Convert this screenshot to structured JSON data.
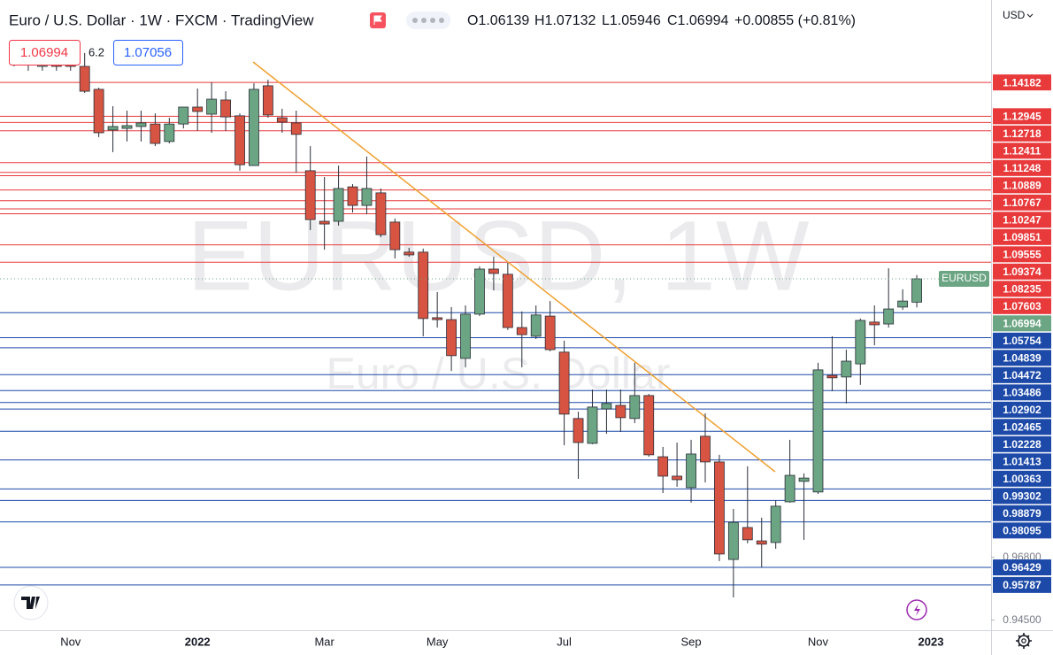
{
  "chart_data": {
    "type": "candlestick",
    "title": "Euro / U.S. Dollar · 1W · FXCM · TradingView",
    "symbol": "EURUSD",
    "watermark_symbol": "EURUSD, 1W",
    "watermark_name": "Euro / U.S. Dollar",
    "currency": "USD",
    "categories": [
      null,
      null,
      null,
      null,
      "Nov",
      null,
      null,
      null,
      null,
      null,
      null,
      null,
      null,
      "2022",
      null,
      null,
      null,
      null,
      null,
      null,
      null,
      null,
      "Mar",
      null,
      null,
      null,
      null,
      null,
      null,
      null,
      "May",
      null,
      null,
      null,
      null,
      null,
      null,
      null,
      null,
      "Jul",
      null,
      null,
      null,
      null,
      null,
      null,
      null,
      null,
      "Sep",
      null,
      null,
      null,
      null,
      null,
      null,
      null,
      null,
      "Nov",
      null,
      null,
      null,
      null,
      null,
      null,
      null,
      "2023"
    ],
    "open": [
      1.1493,
      1.1509,
      1.1477,
      1.1493,
      1.1493,
      1.1477,
      1.1393,
      1.1244,
      1.125,
      1.1257,
      1.1266,
      1.1202,
      1.1266,
      1.1328,
      1.1302,
      1.1354,
      1.1296,
      1.1114,
      1.1406,
      1.1289,
      1.127,
      1.1095,
      1.091,
      1.091,
      1.1036,
      1.0968,
      1.1014,
      1.0907,
      1.0797,
      1.0797,
      1.0557,
      1.055,
      1.0408,
      1.057,
      1.0735,
      1.0716,
      1.0521,
      1.0489,
      1.0563,
      1.0431,
      1.0188,
      1.0097,
      1.0223,
      1.0236,
      1.0188,
      1.0272,
      1.0048,
      0.9977,
      0.9935,
      1.0123,
      1.0029,
      0.9672,
      0.9789,
      0.974,
      0.9734,
      0.9883,
      0.9958,
      0.9919,
      1.0346,
      1.034,
      1.0388,
      1.0541,
      1.0534,
      1.0596,
      1.06139,
      null
    ],
    "high": [
      1.1526,
      1.1526,
      1.1509,
      1.1509,
      1.1526,
      1.1526,
      1.1399,
      1.1331,
      1.1315,
      1.1315,
      1.1305,
      1.1289,
      1.1328,
      1.1396,
      1.1419,
      1.1386,
      1.1305,
      1.1415,
      1.1428,
      1.1322,
      1.1315,
      1.1185,
      1.1072,
      1.1114,
      1.1046,
      1.1147,
      1.103,
      1.092,
      1.0813,
      1.081,
      1.0651,
      1.0596,
      1.0602,
      1.0745,
      1.078,
      1.0758,
      1.058,
      1.0602,
      1.0618,
      1.0473,
      1.0213,
      1.0294,
      1.0294,
      1.0294,
      1.0392,
      1.0278,
      1.0084,
      1.01,
      1.011,
      1.0207,
      1.0055,
      0.9857,
      1.0013,
      0.9825,
      0.9889,
      1.011,
      0.9987,
      1.0392,
      1.0489,
      1.044,
      1.0554,
      1.0602,
      1.0738,
      1.0661,
      1.07132,
      null
    ],
    "low": [
      1.1477,
      1.1461,
      1.1461,
      1.1461,
      1.1461,
      1.138,
      1.1218,
      1.1163,
      1.1202,
      1.1202,
      1.1185,
      1.1195,
      1.125,
      1.1241,
      1.1234,
      1.1241,
      1.1095,
      1.1114,
      1.1289,
      1.1234,
      1.1088,
      1.0878,
      1.0806,
      1.0894,
      1.0942,
      1.0936,
      1.0852,
      1.0774,
      1.078,
      1.0489,
      1.0521,
      1.0362,
      1.0375,
      1.0563,
      1.0657,
      1.0512,
      1.0375,
      1.0479,
      1.0434,
      1.009,
      0.9967,
      1.0094,
      1.0132,
      1.0139,
      1.0171,
      1.0048,
      0.9915,
      0.9938,
      0.988,
      0.9954,
      0.9666,
      0.9533,
      0.9731,
      0.9643,
      0.9711,
      0.988,
      0.9744,
      0.9912,
      1.0288,
      1.0243,
      1.0311,
      1.0456,
      1.0521,
      1.0586,
      1.05946,
      null
    ],
    "close": [
      1.1509,
      1.1493,
      1.1493,
      1.1477,
      1.1477,
      1.1386,
      1.1234,
      1.1257,
      1.126,
      1.127,
      1.1195,
      1.1266,
      1.1328,
      1.1312,
      1.1357,
      1.1292,
      1.1117,
      1.1393,
      1.1299,
      1.1273,
      1.1228,
      1.0916,
      1.09,
      1.103,
      1.0968,
      1.103,
      1.0861,
      1.0806,
      1.0787,
      1.0554,
      1.055,
      1.0418,
      1.057,
      1.0735,
      1.0719,
      1.0521,
      1.0495,
      1.0567,
      1.044,
      1.0204,
      1.01,
      1.023,
      1.0243,
      1.0191,
      1.0272,
      1.0055,
      0.9977,
      0.9964,
      1.0058,
      1.0029,
      0.9692,
      0.9808,
      0.9744,
      0.9728,
      0.9867,
      0.998,
      0.997,
      1.0366,
      1.0337,
      1.0398,
      1.0547,
      1.0531,
      1.0589,
      1.0618,
      1.06994,
      null
    ],
    "up_color": "#6ba583",
    "down_color": "#d75442",
    "ylim": [
      0.9413,
      1.172
    ],
    "yticks": [
      {
        "value": 0.968,
        "label": "0.96800"
      },
      {
        "value": 0.945,
        "label": "0.94500"
      }
    ],
    "grid": false,
    "resistance_color": "#e8393b",
    "support_color": "#1d4aa8",
    "resistance_levels": [
      1.14182,
      1.12945,
      1.12718,
      1.12411,
      1.11248,
      1.10889,
      1.10767,
      1.10247,
      1.09851,
      1.09555,
      1.09374,
      1.08235,
      1.07603
    ],
    "support_levels": [
      1.05754,
      1.04839,
      1.04472,
      1.03486,
      1.02902,
      1.02465,
      1.02228,
      1.01413,
      1.00363,
      0.99302,
      0.98879,
      0.98095,
      0.96429,
      0.95787
    ]
  },
  "toolbar": {
    "open": "O1.06139",
    "high": "H1.07132",
    "low": "L1.05946",
    "close": "C1.06994",
    "change": "+0.00855 (+0.81%)",
    "sell": "1.06994",
    "spread": "6.2",
    "buy": "1.07056"
  }
}
